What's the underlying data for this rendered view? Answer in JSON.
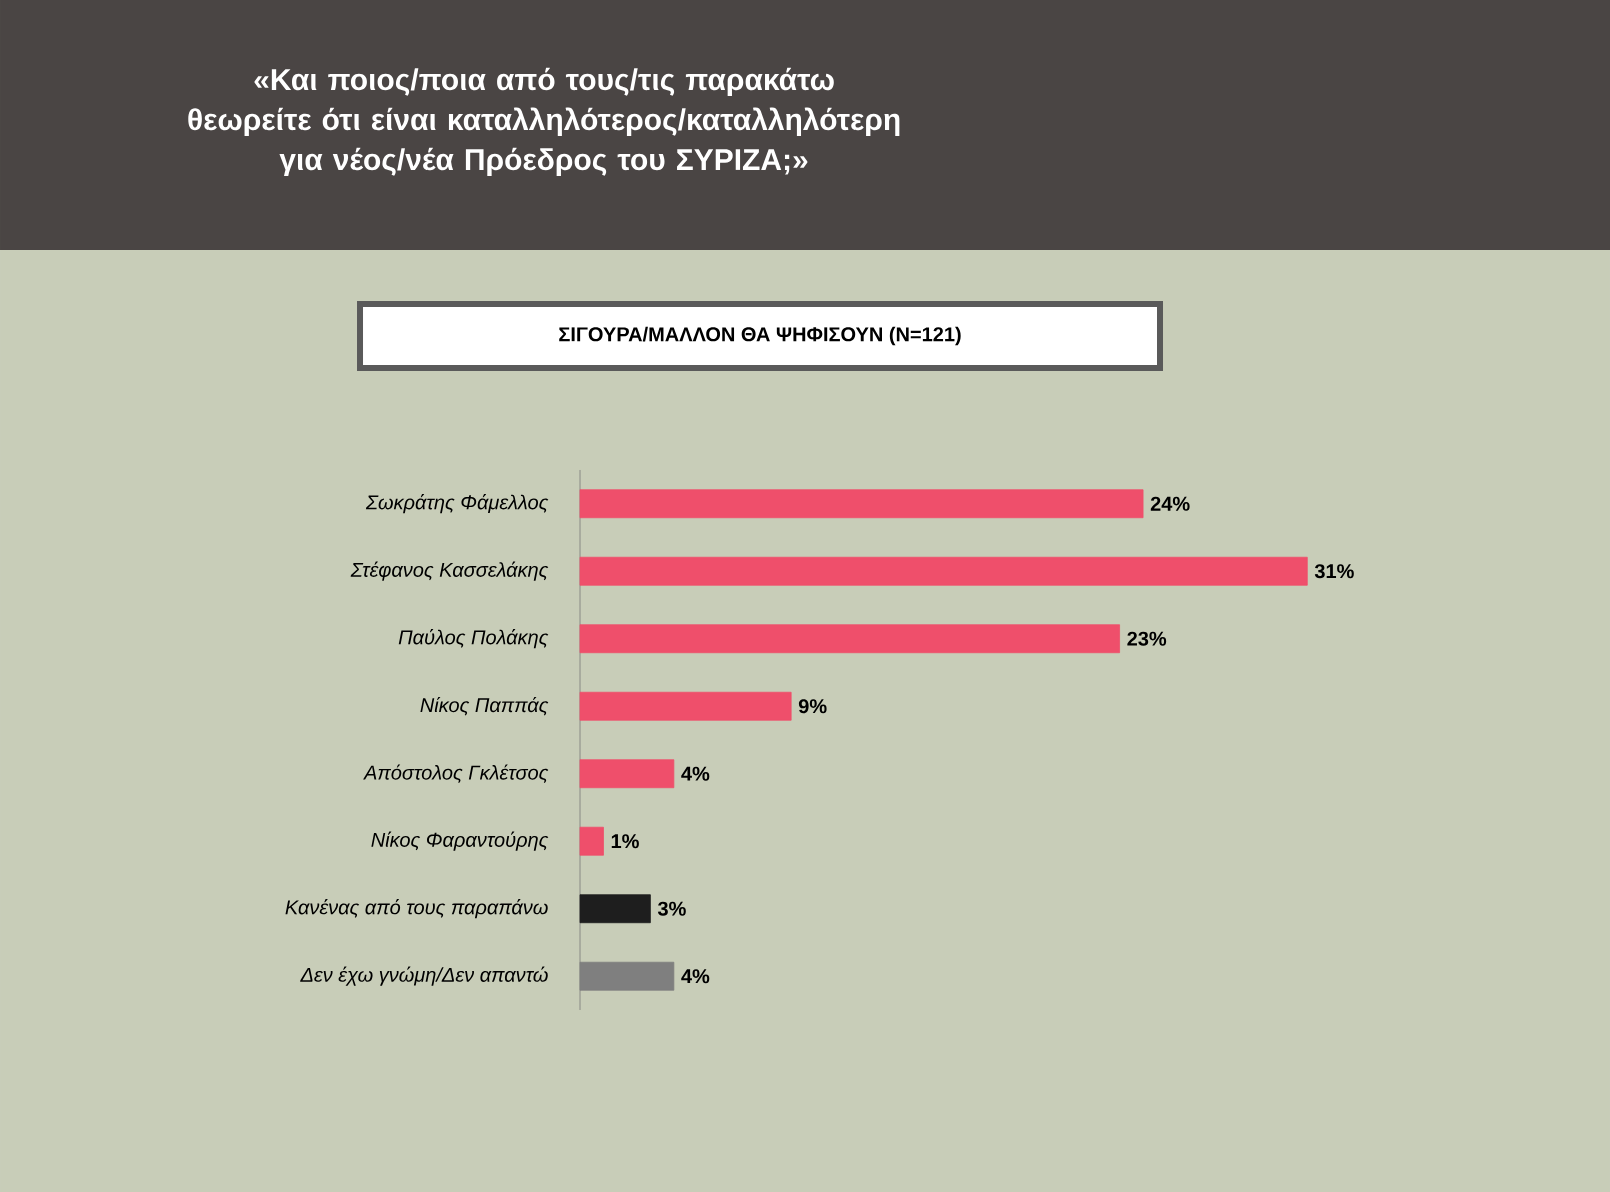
{
  "chart_data": {
    "type": "bar",
    "orientation": "horizontal",
    "title": "«Και ποιος/ποια από τους/τις παρακάτω θεωρείτε ότι είναι καταλληλότερος/καταλληλότερη για νέος/νέα Πρόεδρος του ΣΥΡΙΖΑ;»",
    "subtitle": "ΣΙΓΟΥΡΑ/ΜΑΛΛΟΝ ΘΑ ΨΗΦΙΣΟΥΝ (N=121)",
    "categories": [
      "Σωκράτης Φάμελλος",
      "Στέφανος Κασσελάκης",
      "Παύλος Πολάκης",
      "Νίκος Παππάς",
      "Απόστολος Γκλέτσος",
      "Νίκος Φαραντούρης",
      "Κανένας από τους παραπάνω",
      "Δεν έχω γνώμη/Δεν απαντώ"
    ],
    "values": [
      24,
      31,
      23,
      9,
      4,
      1,
      3,
      4
    ],
    "value_labels": [
      "24%",
      "31%",
      "23%",
      "9%",
      "4%",
      "1%",
      "3%",
      "4%"
    ],
    "colors": [
      "#ef4f6b",
      "#ef4f6b",
      "#ef4f6b",
      "#ef4f6b",
      "#ef4f6b",
      "#ef4f6b",
      "#1e1e1e",
      "#7f7f7f"
    ]
  }
}
